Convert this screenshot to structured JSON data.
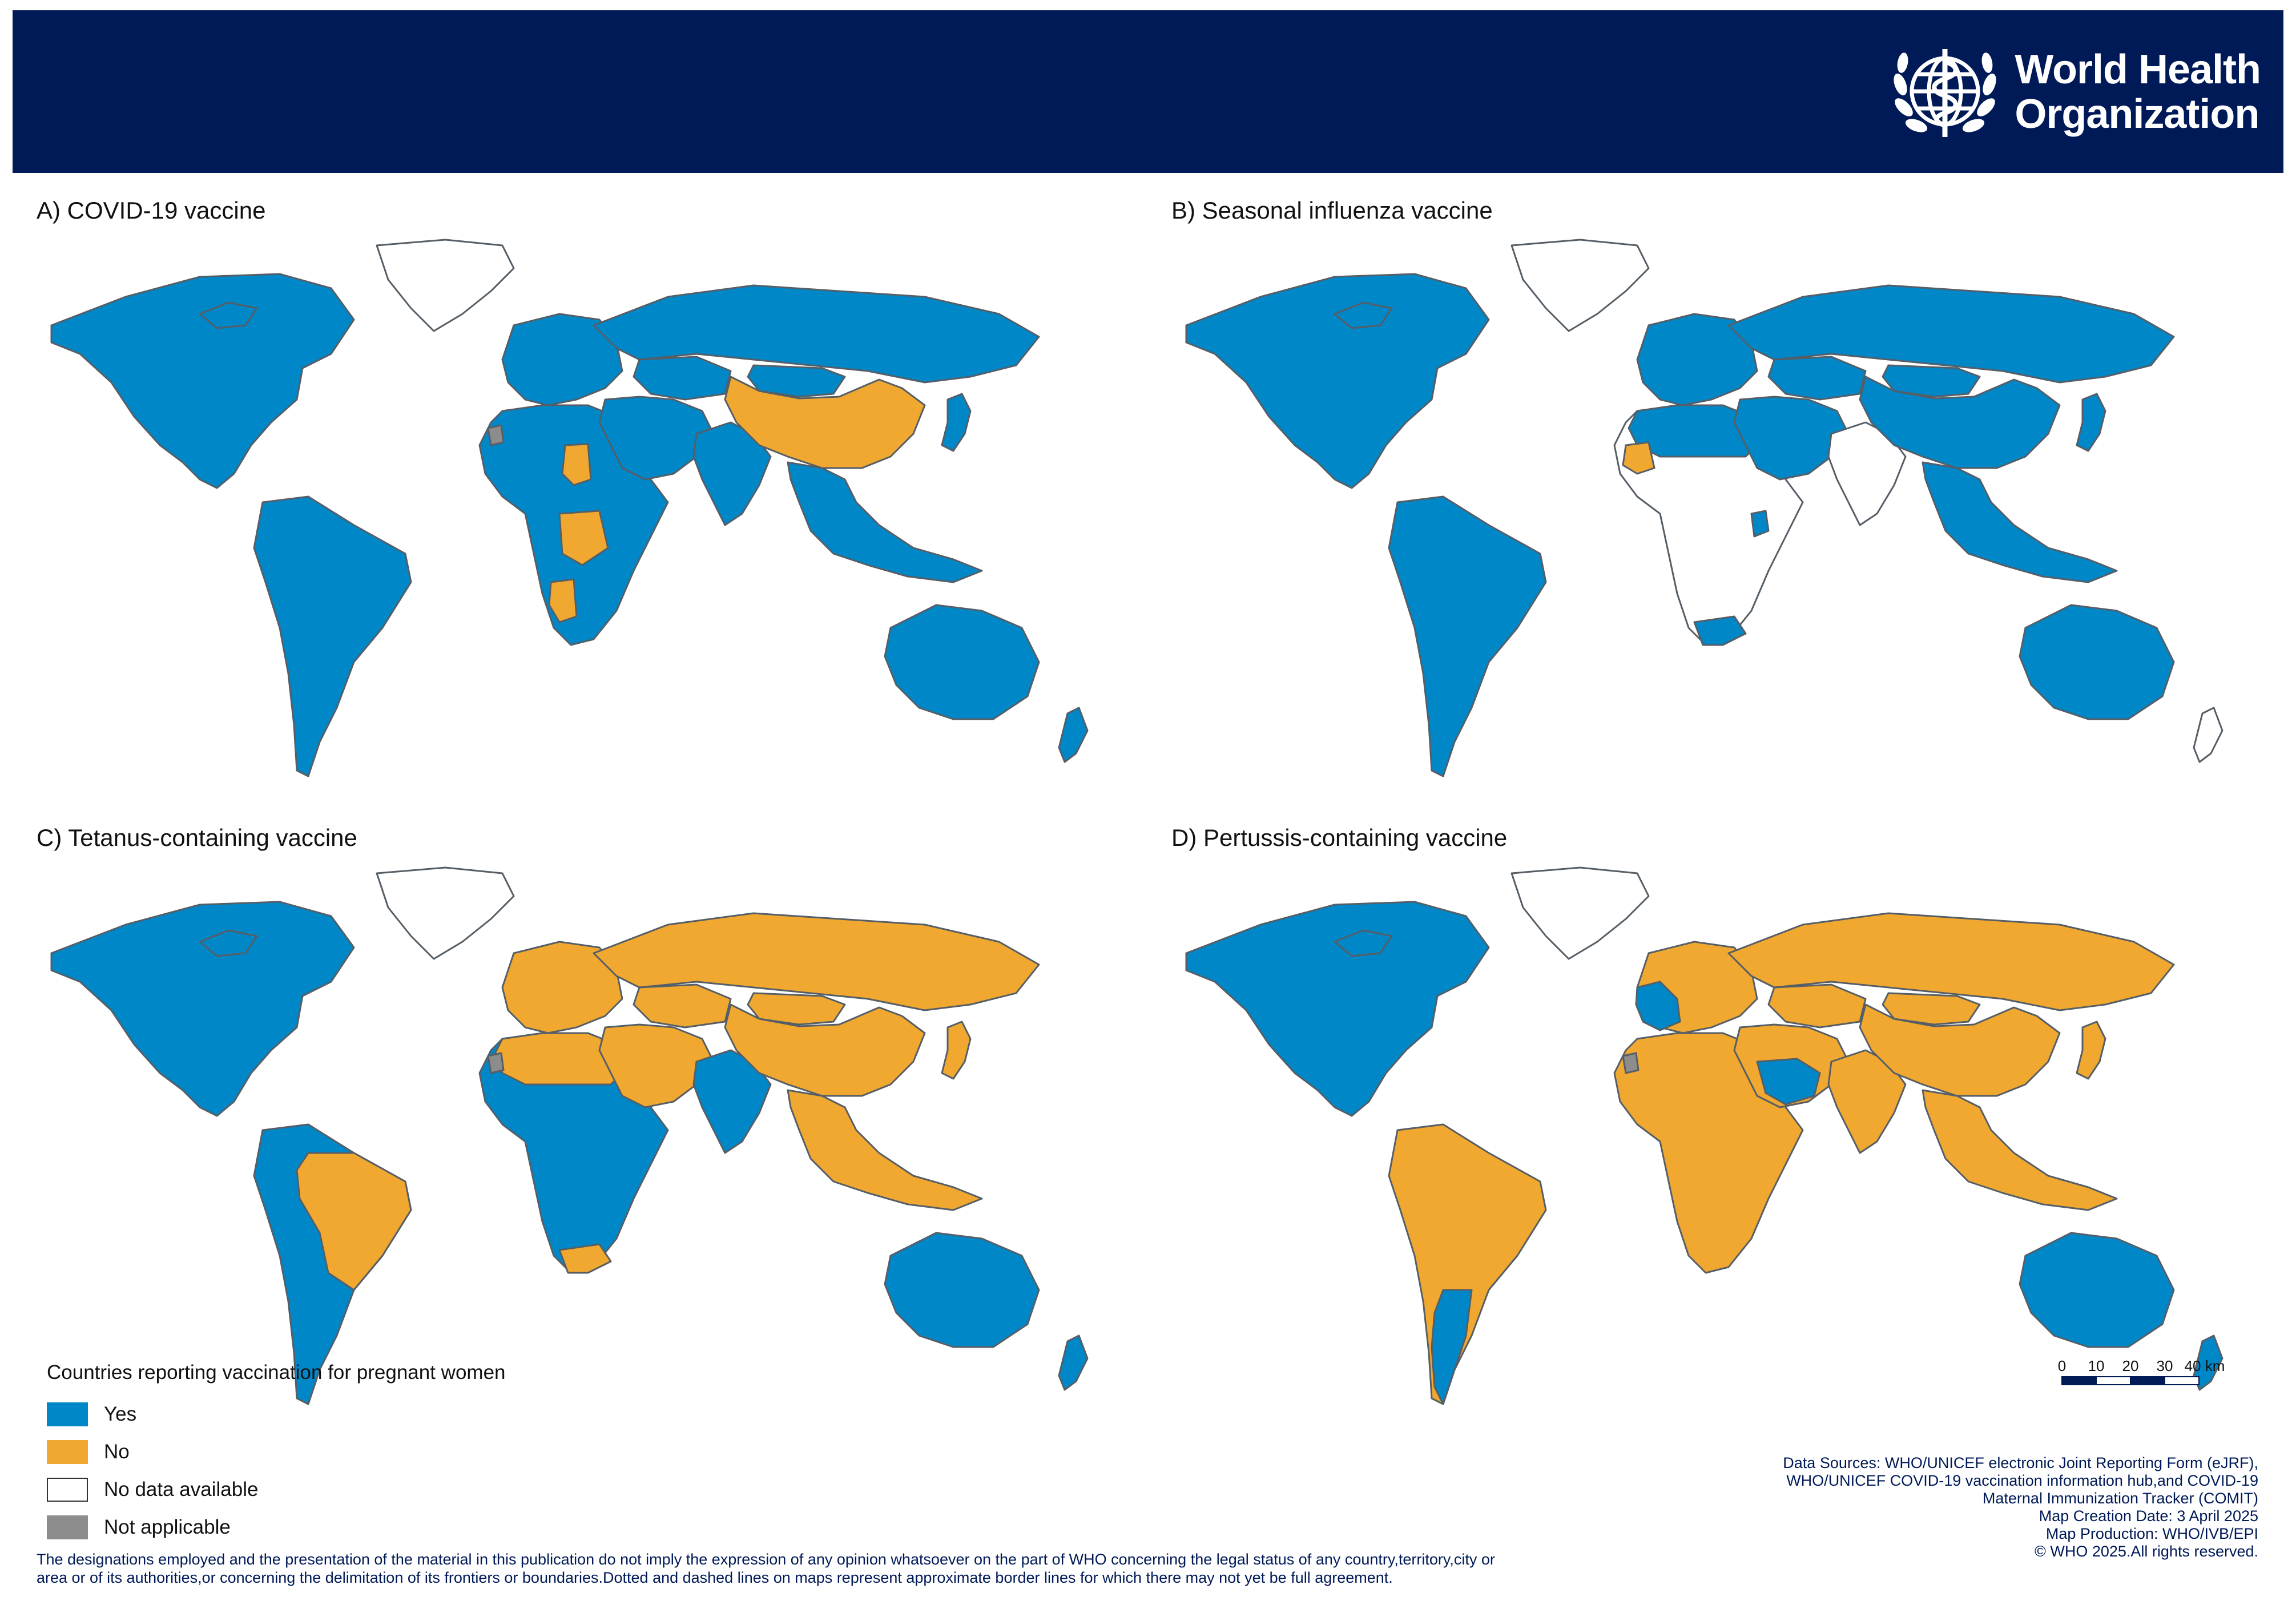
{
  "header": {
    "org_name_line1": "World Health",
    "org_name_line2": "Organization",
    "logo_icon": "who-emblem-icon",
    "background_color": "#001a57"
  },
  "panels": [
    {
      "label": "A) COVID-19 vaccine"
    },
    {
      "label": "B) Seasonal influenza vaccine"
    },
    {
      "label": "C) Tetanus-containing vaccine"
    },
    {
      "label": "D) Pertussis-containing vaccine"
    }
  ],
  "legend": {
    "title": "Countries reporting vaccination for pregnant women",
    "items": [
      {
        "label": "Yes",
        "color": "#0087c8"
      },
      {
        "label": "No",
        "color": "#f0a830"
      },
      {
        "label": "No data available",
        "color": "#ffffff"
      },
      {
        "label": "Not applicable",
        "color": "#8c8c8c"
      }
    ]
  },
  "scale": {
    "ticks": [
      "0",
      "10",
      "20",
      "30",
      "40 km"
    ]
  },
  "sources": {
    "line1": "Data Sources:  WHO/UNICEF electronic Joint Reporting Form (eJRF),",
    "line2": "WHO/UNICEF COVID-19 vaccination information hub,and COVID-19",
    "line3": "Maternal Immunization Tracker (COMIT)",
    "line4": "Map Creation Date: 3 April 2025",
    "line5": "Map Production: WHO/IVB/EPI",
    "line6": "© WHO 2025.All rights reserved."
  },
  "disclaimer": {
    "line1": "The designations employed and the presentation of the material in this publication do not imply the expression of any opinion whatsoever on the part of WHO concerning the legal status of any country,territory,city or",
    "line2": "area or of its authorities,or concerning the delimitation of its frontiers or boundaries.Dotted and dashed lines on maps represent approximate border lines for which there may not yet be full agreement."
  },
  "map_colors": {
    "yes": "#0087c8",
    "no": "#f0a830",
    "nodata": "#ffffff",
    "na": "#8c8c8c",
    "border": "#555e66"
  },
  "map_status": {
    "A": {
      "north_america": "yes",
      "greenland": "nodata",
      "south_america": "yes",
      "europe": "yes",
      "russia": "yes",
      "china": "no",
      "mongolia": "yes",
      "middle_east": "yes",
      "africa": "yes",
      "south_asia": "yes",
      "southeast_asia": "yes",
      "australia": "yes",
      "new_zealand": "yes",
      "kazakhstan": "yes",
      "japan": "yes",
      "chad": "no",
      "drc": "no",
      "namibia": "no",
      "western_sahara": "na"
    },
    "B": {
      "north_america": "yes",
      "greenland": "nodata",
      "south_america": "yes",
      "europe": "yes",
      "russia": "yes",
      "china": "yes",
      "mongolia": "yes",
      "middle_east": "yes",
      "africa": "nodata",
      "south_asia": "nodata",
      "southeast_asia": "yes",
      "australia": "yes",
      "new_zealand": "nodata",
      "kazakhstan": "yes",
      "japan": "yes",
      "mauritania": "no",
      "kenya": "yes",
      "south_africa": "yes",
      "north_africa": "yes"
    },
    "C": {
      "north_america": "yes",
      "greenland": "nodata",
      "south_america": "yes",
      "brazil": "no",
      "europe": "no",
      "russia": "no",
      "china": "no",
      "mongolia": "no",
      "middle_east": "no",
      "africa": "yes",
      "north_africa": "no",
      "south_asia": "yes",
      "southeast_asia": "no",
      "australia": "yes",
      "new_zealand": "yes",
      "kazakhstan": "no",
      "japan": "no",
      "south_africa": "no",
      "western_sahara": "na"
    },
    "D": {
      "north_america": "yes",
      "greenland": "nodata",
      "south_america": "no",
      "argentina": "yes",
      "europe": "no",
      "western_europe": "yes",
      "russia": "no",
      "china": "no",
      "mongolia": "no",
      "middle_east": "no",
      "saudi_arabia": "yes",
      "africa": "no",
      "south_asia": "no",
      "southeast_asia": "no",
      "australia": "yes",
      "new_zealand": "yes",
      "kazakhstan": "no",
      "japan": "no",
      "western_sahara": "na"
    }
  }
}
